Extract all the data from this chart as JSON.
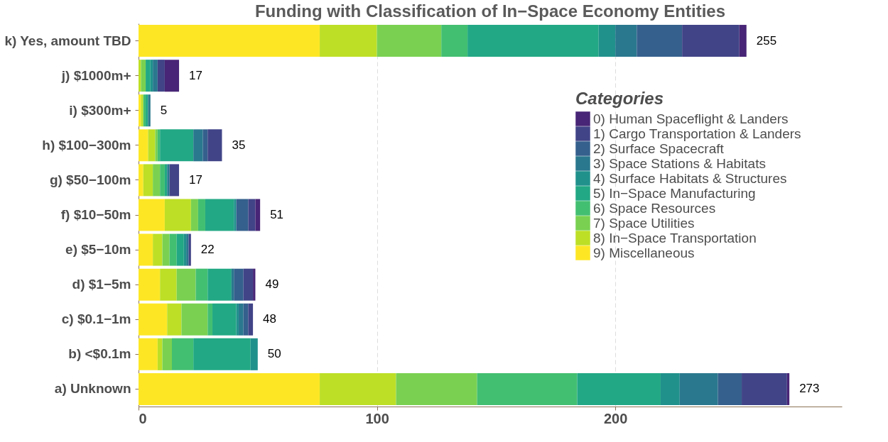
{
  "chart_data": {
    "type": "bar",
    "orientation": "horizontal",
    "stacked": true,
    "title": "Funding with Classification of In−Space Economy Entities",
    "categories": [
      "k) Yes, amount TBD",
      "j)  $1000m+",
      "i)  $300m+",
      "h)  $100−300m",
      "g)  $50−100m",
      "f)  $10−50m",
      "e)  $5−10m",
      "d)  $1−5m",
      "c)  $0.1−1m",
      "b)  <$0.1m",
      "a) Unknown"
    ],
    "series": [
      {
        "name": "9)  Miscellaneous",
        "color": "#fde725",
        "values": [
          76,
          0,
          1,
          4,
          2,
          11,
          6,
          9,
          12,
          8,
          76
        ]
      },
      {
        "name": "8)  In−Space Transportation",
        "color": "#bddf26",
        "values": [
          24,
          1,
          1,
          3,
          4,
          11,
          4,
          7,
          6,
          2,
          32
        ]
      },
      {
        "name": "7)  Space Utilities",
        "color": "#7ad151",
        "values": [
          27,
          2,
          0,
          1,
          3,
          3,
          3,
          8,
          11,
          4,
          34
        ]
      },
      {
        "name": "6)  Space Resources",
        "color": "#43bf71",
        "values": [
          11,
          0,
          1,
          1,
          2,
          3,
          3,
          5,
          2,
          9,
          42
        ]
      },
      {
        "name": "5)  In−Space Manufacturing",
        "color": "#22a884",
        "values": [
          55,
          2,
          1,
          14,
          1,
          12,
          3,
          10,
          10,
          24,
          35
        ]
      },
      {
        "name": "4)  Surface Habitats & Structures",
        "color": "#21918c",
        "values": [
          7,
          1,
          0,
          0,
          0,
          1,
          1,
          0,
          1,
          3,
          8
        ]
      },
      {
        "name": "3)  Space Stations & Habitats",
        "color": "#2a788e",
        "values": [
          9,
          2,
          1,
          4,
          1,
          0,
          1,
          1,
          2,
          0,
          16
        ]
      },
      {
        "name": "2)  Surface Spacecraft",
        "color": "#35608d",
        "values": [
          19,
          0,
          0,
          2,
          0,
          5,
          0,
          4,
          2,
          0,
          10
        ]
      },
      {
        "name": "1)  Cargo Transportation & Landers",
        "color": "#414487",
        "values": [
          24,
          3,
          0,
          6,
          4,
          3,
          1,
          4,
          2,
          0,
          19
        ]
      },
      {
        "name": "0)  Human Spaceflight & Landers",
        "color": "#482576",
        "values": [
          3,
          6,
          0,
          0,
          0,
          2,
          0,
          1,
          0,
          0,
          1
        ]
      }
    ],
    "totals": [
      "255",
      "17",
      "5",
      "35",
      "17",
      "51",
      "22",
      "49",
      "48",
      "50",
      "273"
    ],
    "xlim": [
      0,
      295
    ],
    "xticks": [
      0,
      100,
      200
    ],
    "grid": "x",
    "legend": "right",
    "legend_title": "Categories"
  }
}
